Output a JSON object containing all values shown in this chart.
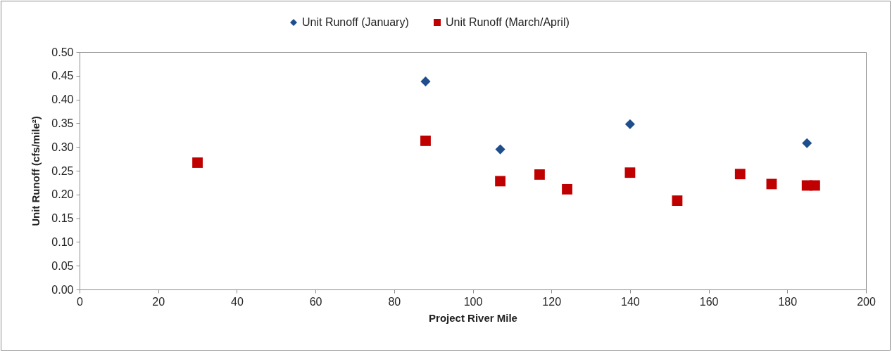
{
  "chart_data": {
    "type": "scatter",
    "xlabel": "Project River Mile",
    "ylabel": "Unit Runoff (cfs/mile²)",
    "xlim": [
      0,
      200
    ],
    "xticks": [
      0,
      20,
      40,
      60,
      80,
      100,
      120,
      140,
      160,
      180,
      200
    ],
    "ylim": [
      0,
      0.5
    ],
    "yticks": [
      {
        "value": 0,
        "label": "0.00"
      },
      {
        "value": 0.05,
        "label": "0.05"
      },
      {
        "value": 0.1,
        "label": "0.10"
      },
      {
        "value": 0.15,
        "label": "0.15"
      },
      {
        "value": 0.2,
        "label": "0.20"
      },
      {
        "value": 0.25,
        "label": "0.25"
      },
      {
        "value": 0.3,
        "label": "0.30"
      },
      {
        "value": 0.35,
        "label": "0.35"
      },
      {
        "value": 0.4,
        "label": "0.40"
      },
      {
        "value": 0.45,
        "label": "0.45"
      },
      {
        "value": 0.5,
        "label": "0.50"
      }
    ],
    "grid": false,
    "legend": "top",
    "series": [
      {
        "name": "Unit Runoff (January)",
        "color": "#1f4e8c",
        "marker": "diamond",
        "x": [
          88,
          107,
          140,
          185
        ],
        "values": [
          0.438,
          0.295,
          0.348,
          0.308
        ]
      },
      {
        "name": "Unit Runoff (March/April)",
        "color": "#c00000",
        "marker": "square",
        "x": [
          30,
          88,
          107,
          117,
          124,
          140,
          152,
          168,
          176,
          185,
          187
        ],
        "values": [
          0.267,
          0.313,
          0.228,
          0.242,
          0.211,
          0.246,
          0.187,
          0.243,
          0.222,
          0.219,
          0.219
        ]
      }
    ]
  }
}
